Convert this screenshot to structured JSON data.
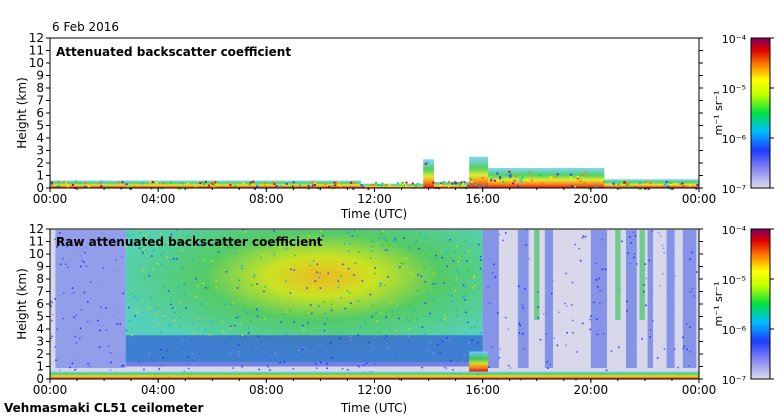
{
  "header": {
    "date": "6 Feb 2016"
  },
  "footer": {
    "instrument": "Vehmasmaki CL51 ceilometer"
  },
  "chart_data": [
    {
      "type": "heatmap",
      "title": "Attenuated backscatter coefficient",
      "xlabel": "Time (UTC)",
      "ylabel": "Height (km)",
      "x_ticks": [
        "00:00",
        "04:00",
        "08:00",
        "12:00",
        "16:00",
        "20:00",
        "00:00"
      ],
      "y_ticks": [
        "0",
        "1",
        "2",
        "3",
        "4",
        "5",
        "6",
        "7",
        "8",
        "9",
        "10",
        "11",
        "12"
      ],
      "xlim_hours": [
        0,
        24
      ],
      "ylim_km": [
        0,
        12
      ],
      "colorbar": {
        "scale": "log",
        "label": "m⁻¹ sr⁻¹",
        "tick_labels": [
          "10⁻⁴",
          "10⁻⁵",
          "10⁻⁶",
          "10⁻⁷"
        ],
        "range": [
          1e-07,
          0.0001
        ]
      },
      "features": [
        {
          "t_start": 0.0,
          "t_end": 11.5,
          "top_km": 0.6
        },
        {
          "t_start": 11.5,
          "t_end": 13.8,
          "top_km": 0.35
        },
        {
          "t_start": 13.8,
          "t_end": 14.2,
          "top_km": 2.3
        },
        {
          "t_start": 14.2,
          "t_end": 15.5,
          "top_km": 0.5
        },
        {
          "t_start": 15.5,
          "t_end": 16.2,
          "top_km": 2.5
        },
        {
          "t_start": 16.2,
          "t_end": 20.5,
          "top_km": 1.6
        },
        {
          "t_start": 20.5,
          "t_end": 24.0,
          "top_km": 0.7
        }
      ]
    },
    {
      "type": "heatmap",
      "title": "Raw attenuated backscatter coefficient",
      "xlabel": "Time (UTC)",
      "ylabel": "Height (km)",
      "x_ticks": [
        "00:00",
        "04:00",
        "08:00",
        "12:00",
        "16:00",
        "20:00",
        "00:00"
      ],
      "y_ticks": [
        "0",
        "1",
        "2",
        "3",
        "4",
        "5",
        "6",
        "7",
        "8",
        "9",
        "10",
        "11",
        "12"
      ],
      "xlim_hours": [
        0,
        24
      ],
      "ylim_km": [
        0,
        12
      ],
      "colorbar": {
        "scale": "log",
        "label": "m⁻¹ sr⁻¹",
        "tick_labels": [
          "10⁻⁴",
          "10⁻⁵",
          "10⁻⁶",
          "10⁻⁷"
        ],
        "range": [
          1e-07,
          0.0001
        ]
      },
      "features": [
        {
          "t_start": 0.0,
          "t_end": 2.8,
          "top_km": 12,
          "intensity": "blue noise"
        },
        {
          "t_start": 2.8,
          "t_end": 16.0,
          "top_km": 12,
          "intensity": "green-yellow"
        },
        {
          "t_start": 16.0,
          "t_end": 24.0,
          "top_km": 12,
          "intensity": "gray with blue columns"
        }
      ]
    }
  ]
}
